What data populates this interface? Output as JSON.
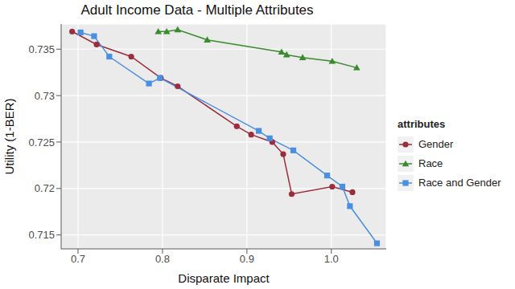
{
  "chart_data": {
    "type": "line",
    "title": "Adult Income Data - Multiple Attributes",
    "x_label": "Disparate Impact",
    "y_label": "Utility (1-BER)",
    "legend_title": "attributes",
    "legend": "right",
    "grid": true,
    "xlim": [
      0.68,
      1.065
    ],
    "xticks": [
      0.7,
      0.8,
      0.9,
      {
        "value": 1,
        "label": "1.0"
      }
    ],
    "ylim": [
      0.7135,
      0.7377
    ],
    "yticks": [
      0.715,
      0.72,
      0.725,
      0.73,
      0.735
    ],
    "series": [
      {
        "name": "Gender",
        "color": "#9B2D3C",
        "marker": "circle",
        "x": [
          0.693,
          0.722,
          0.763,
          0.798,
          0.818,
          0.888,
          0.905,
          0.93,
          0.943,
          0.953,
          1.001,
          1.025
        ],
        "values": [
          0.7369,
          0.7355,
          0.7342,
          0.7319,
          0.731,
          0.7267,
          0.7258,
          0.725,
          0.7237,
          0.7194,
          0.7202,
          0.7196
        ]
      },
      {
        "name": "Race",
        "color": "#3B8A2F",
        "marker": "triangle",
        "x": [
          0.795,
          0.805,
          0.818,
          0.853,
          0.941,
          0.947,
          0.966,
          1.001,
          1.03
        ],
        "values": [
          0.7369,
          0.7369,
          0.7371,
          0.736,
          0.7347,
          0.7344,
          0.7341,
          0.7337,
          0.733
        ]
      },
      {
        "name": "Race and Gender",
        "color": "#4A90E2",
        "marker": "square",
        "x": [
          0.703,
          0.719,
          0.737,
          0.784,
          0.797,
          0.914,
          0.927,
          0.955,
          0.995,
          1.013,
          1.022,
          1.054
        ],
        "values": [
          0.7368,
          0.7364,
          0.7342,
          0.7313,
          0.7319,
          0.7262,
          0.7254,
          0.7241,
          0.7214,
          0.7202,
          0.7181,
          0.7141
        ]
      }
    ]
  }
}
